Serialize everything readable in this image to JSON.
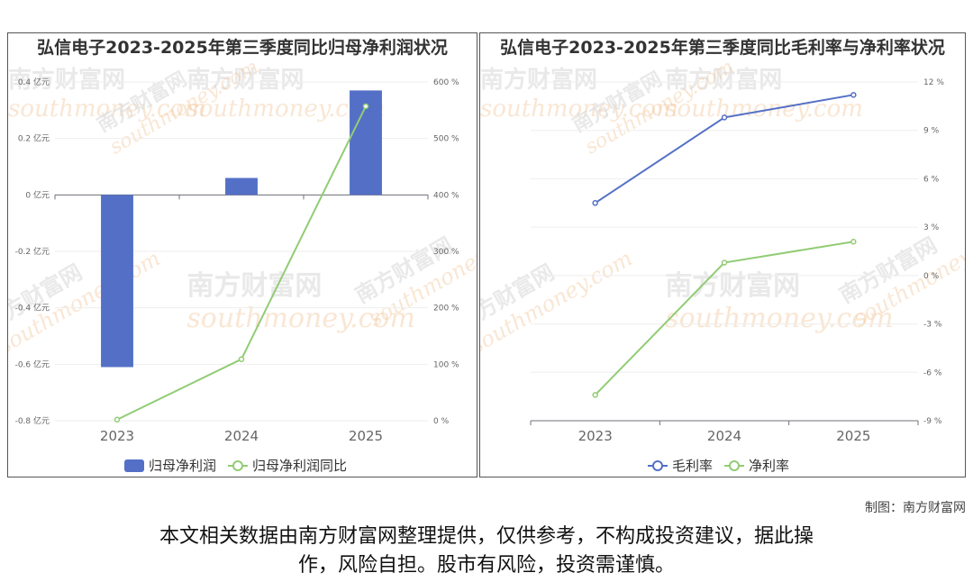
{
  "charts": [
    {
      "title": "弘信电子2023-2025年第三季度同比归母净利润状况",
      "chart_data": {
        "type": "bar+line",
        "categories": [
          "2023",
          "2024",
          "2025"
        ],
        "series": [
          {
            "name": "归母净利润",
            "kind": "bar",
            "axis": "left",
            "color": "#5470c6",
            "values": [
              -0.61,
              0.06,
              0.37
            ]
          },
          {
            "name": "归母净利润同比",
            "kind": "line",
            "axis": "right",
            "color": "#91cc75",
            "values": [
              2,
              109,
              557
            ]
          }
        ],
        "left_axis": {
          "min": -0.8,
          "max": 0.4,
          "ticks": [
            -0.8,
            -0.6,
            -0.4,
            -0.2,
            0,
            0.2,
            0.4
          ],
          "labels": [
            "-0.8 亿元",
            "-0.6 亿元",
            "-0.4 亿元",
            "-0.2 亿元",
            "0 亿元",
            "0.2 亿元",
            "0.4 亿元"
          ]
        },
        "right_axis": {
          "min": 0,
          "max": 600,
          "ticks": [
            0,
            100,
            200,
            300,
            400,
            500,
            600
          ],
          "labels": [
            "0 %",
            "100 %",
            "200 %",
            "300 %",
            "400 %",
            "500 %",
            "600 %"
          ]
        },
        "grid": true,
        "legend": "bottom"
      }
    },
    {
      "title": "弘信电子2023-2025年第三季度同比毛利率与净利率状况",
      "chart_data": {
        "type": "line",
        "categories": [
          "2023",
          "2024",
          "2025"
        ],
        "series": [
          {
            "name": "毛利率",
            "kind": "line",
            "axis": "right",
            "color": "#5470c6",
            "values": [
              4.5,
              9.8,
              11.2
            ]
          },
          {
            "name": "净利率",
            "kind": "line",
            "axis": "right",
            "color": "#91cc75",
            "values": [
              -7.4,
              0.8,
              2.1
            ]
          }
        ],
        "right_axis": {
          "min": -9,
          "max": 12,
          "ticks": [
            -9,
            -6,
            -3,
            0,
            3,
            6,
            9,
            12
          ],
          "labels": [
            "-9 %",
            "-6 %",
            "-3 %",
            "0 %",
            "3 %",
            "6 %",
            "9 %",
            "12 %"
          ]
        },
        "grid": true,
        "legend": "bottom"
      }
    }
  ],
  "watermark": {
    "cn": "南方财富网",
    "en": "southmoney.com"
  },
  "credit": "制图：南方财富网",
  "disclaimer_line1": "本文相关数据由南方财富网整理提供，仅供参考，不构成投资建议，据此操",
  "disclaimer_line2": "作，风险自担。股市有风险，投资需谨慎。"
}
